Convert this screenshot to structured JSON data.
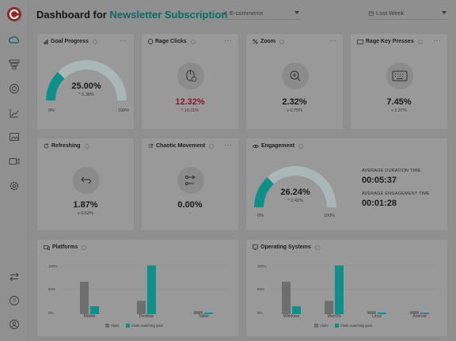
{
  "header": {
    "title_prefix": "Dashboard for",
    "title_accent": "Newsletter Subscription",
    "category_select": "E-commerce",
    "period_select": "Last Week"
  },
  "sidebar": {
    "items": [
      "cloud-icon",
      "funnel-icon",
      "target-icon",
      "chart-icon",
      "gallery-icon",
      "video-icon",
      "settings-icon"
    ],
    "bottom": [
      "swap-icon",
      "help-icon",
      "user-icon"
    ]
  },
  "cards": {
    "goal_progress": {
      "title": "Goal Progress",
      "value": "25.00%",
      "change": "^ 5.38%",
      "min": "0%",
      "max": "100%",
      "level": 0.25
    },
    "rage_clicks": {
      "title": "Rage Clicks",
      "value": "12.32%",
      "change": "^ 10.11%"
    },
    "zoom": {
      "title": "Zoom",
      "value": "2.32%",
      "change": "v 0.75%"
    },
    "rage_key_presses": {
      "title": "Rage Key Presses",
      "value": "7.45%",
      "change": "v 2.37%"
    },
    "refreshing": {
      "title": "Refreshing",
      "value": "1.87%",
      "change": "v 0.52%"
    },
    "chaotic_movement": {
      "title": "Chaotic Movement",
      "value": "0.00%",
      "change": "-"
    },
    "engagement": {
      "title": "Engagement",
      "value": "26.24%",
      "change": "^ 2.42%",
      "min": "0%",
      "max": "100%",
      "level": 0.2624,
      "avg_duration_label": "AVERAGE DURATION TIME",
      "avg_duration": "00:05:37",
      "avg_engagement_label": "AVERAGE ENGAGEMENT TIME",
      "avg_engagement": "00:01:28"
    }
  },
  "platforms": {
    "title": "Platforms",
    "y_ticks": [
      "100%",
      "50%",
      "0%"
    ],
    "legend": [
      "Visits",
      "Visits matching goal"
    ]
  },
  "operating_systems": {
    "title": "Operating Systems",
    "y_ticks": [
      "100%",
      "50%",
      "0%"
    ],
    "legend": [
      "Visits",
      "Visits matching goal"
    ]
  },
  "colors": {
    "teal": "#0f8f88",
    "gray_bar": "#6e6e6e",
    "gauge_track": "#a9b8b6"
  },
  "chart_data": [
    {
      "type": "bar",
      "title": "Platforms",
      "categories": [
        "Mobile",
        "Desktop",
        "Tablet"
      ],
      "series": [
        {
          "name": "Visits",
          "values": [
            66,
            27,
            6
          ]
        },
        {
          "name": "Visits matching goal",
          "values": [
            16,
            99,
            3
          ]
        }
      ],
      "ylim": [
        0,
        100
      ]
    },
    {
      "type": "bar",
      "title": "Operating Systems",
      "categories": [
        "Windows",
        "MacOS",
        "Linux",
        "Android"
      ],
      "series": [
        {
          "name": "Visits",
          "values": [
            66,
            27,
            6,
            6
          ]
        },
        {
          "name": "Visits matching goal",
          "values": [
            16,
            99,
            3,
            3
          ]
        }
      ],
      "ylim": [
        0,
        100
      ]
    }
  ]
}
